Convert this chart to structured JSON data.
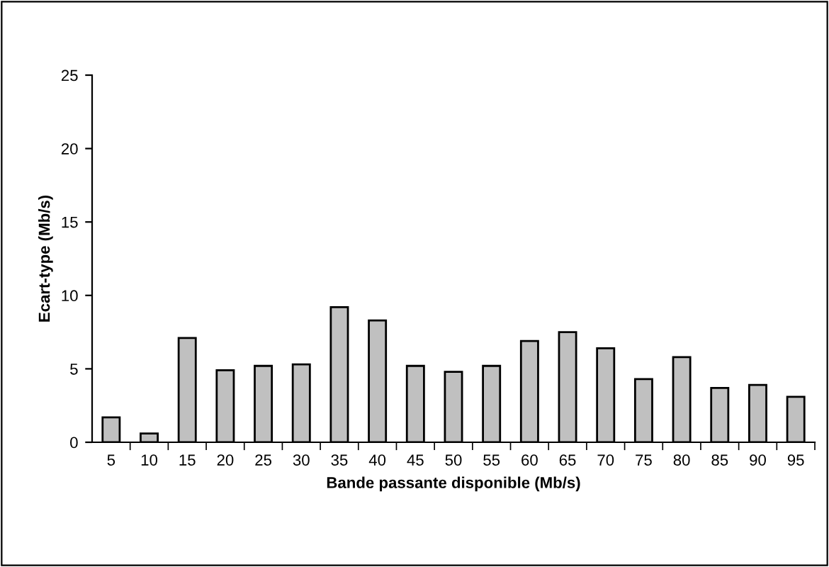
{
  "chart_data": {
    "type": "bar",
    "xlabel": "Bande passante disponible (Mb/s)",
    "ylabel": "Ecart-type (Mb/s)",
    "categories": [
      "5",
      "10",
      "15",
      "20",
      "25",
      "30",
      "35",
      "40",
      "45",
      "50",
      "55",
      "60",
      "65",
      "70",
      "75",
      "80",
      "85",
      "90",
      "95"
    ],
    "series": [
      {
        "color": "#c0c0c0",
        "values": [
          1.7,
          0.6,
          7.1,
          4.9,
          5.2,
          5.3,
          9.2,
          8.3,
          5.2,
          4.8,
          5.2,
          6.9,
          7.5,
          6.4,
          4.3,
          5.8,
          3.7,
          3.9,
          3.1
        ]
      }
    ],
    "ylim": [
      0,
      25
    ],
    "yticks": [
      0,
      5,
      10,
      15,
      20,
      25
    ],
    "grid": false
  }
}
